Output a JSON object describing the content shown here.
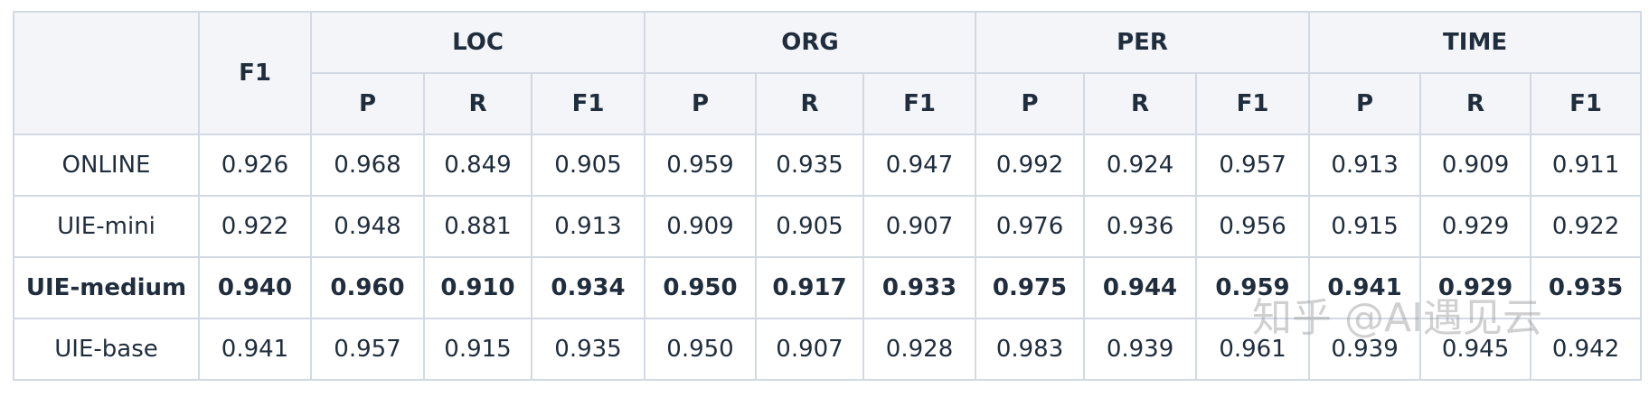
{
  "table": {
    "header": {
      "overall": "F1",
      "groups": [
        "LOC",
        "ORG",
        "PER",
        "TIME"
      ],
      "metrics": [
        "P",
        "R",
        "F1"
      ]
    },
    "rows": [
      {
        "name": "ONLINE",
        "values": [
          "0.926",
          "0.968",
          "0.849",
          "0.905",
          "0.959",
          "0.935",
          "0.947",
          "0.992",
          "0.924",
          "0.957",
          "0.913",
          "0.909",
          "0.911"
        ]
      },
      {
        "name": "UIE-mini",
        "values": [
          "0.922",
          "0.948",
          "0.881",
          "0.913",
          "0.909",
          "0.905",
          "0.907",
          "0.976",
          "0.936",
          "0.956",
          "0.915",
          "0.929",
          "0.922"
        ]
      },
      {
        "name": "UIE-medium",
        "values": [
          "0.940",
          "0.960",
          "0.910",
          "0.934",
          "0.950",
          "0.917",
          "0.933",
          "0.975",
          "0.944",
          "0.959",
          "0.941",
          "0.929",
          "0.935"
        ]
      },
      {
        "name": "UIE-base",
        "values": [
          "0.941",
          "0.957",
          "0.915",
          "0.935",
          "0.950",
          "0.907",
          "0.928",
          "0.983",
          "0.939",
          "0.961",
          "0.939",
          "0.945",
          "0.942"
        ]
      }
    ]
  },
  "watermark": "知乎 @AI遇见云"
}
